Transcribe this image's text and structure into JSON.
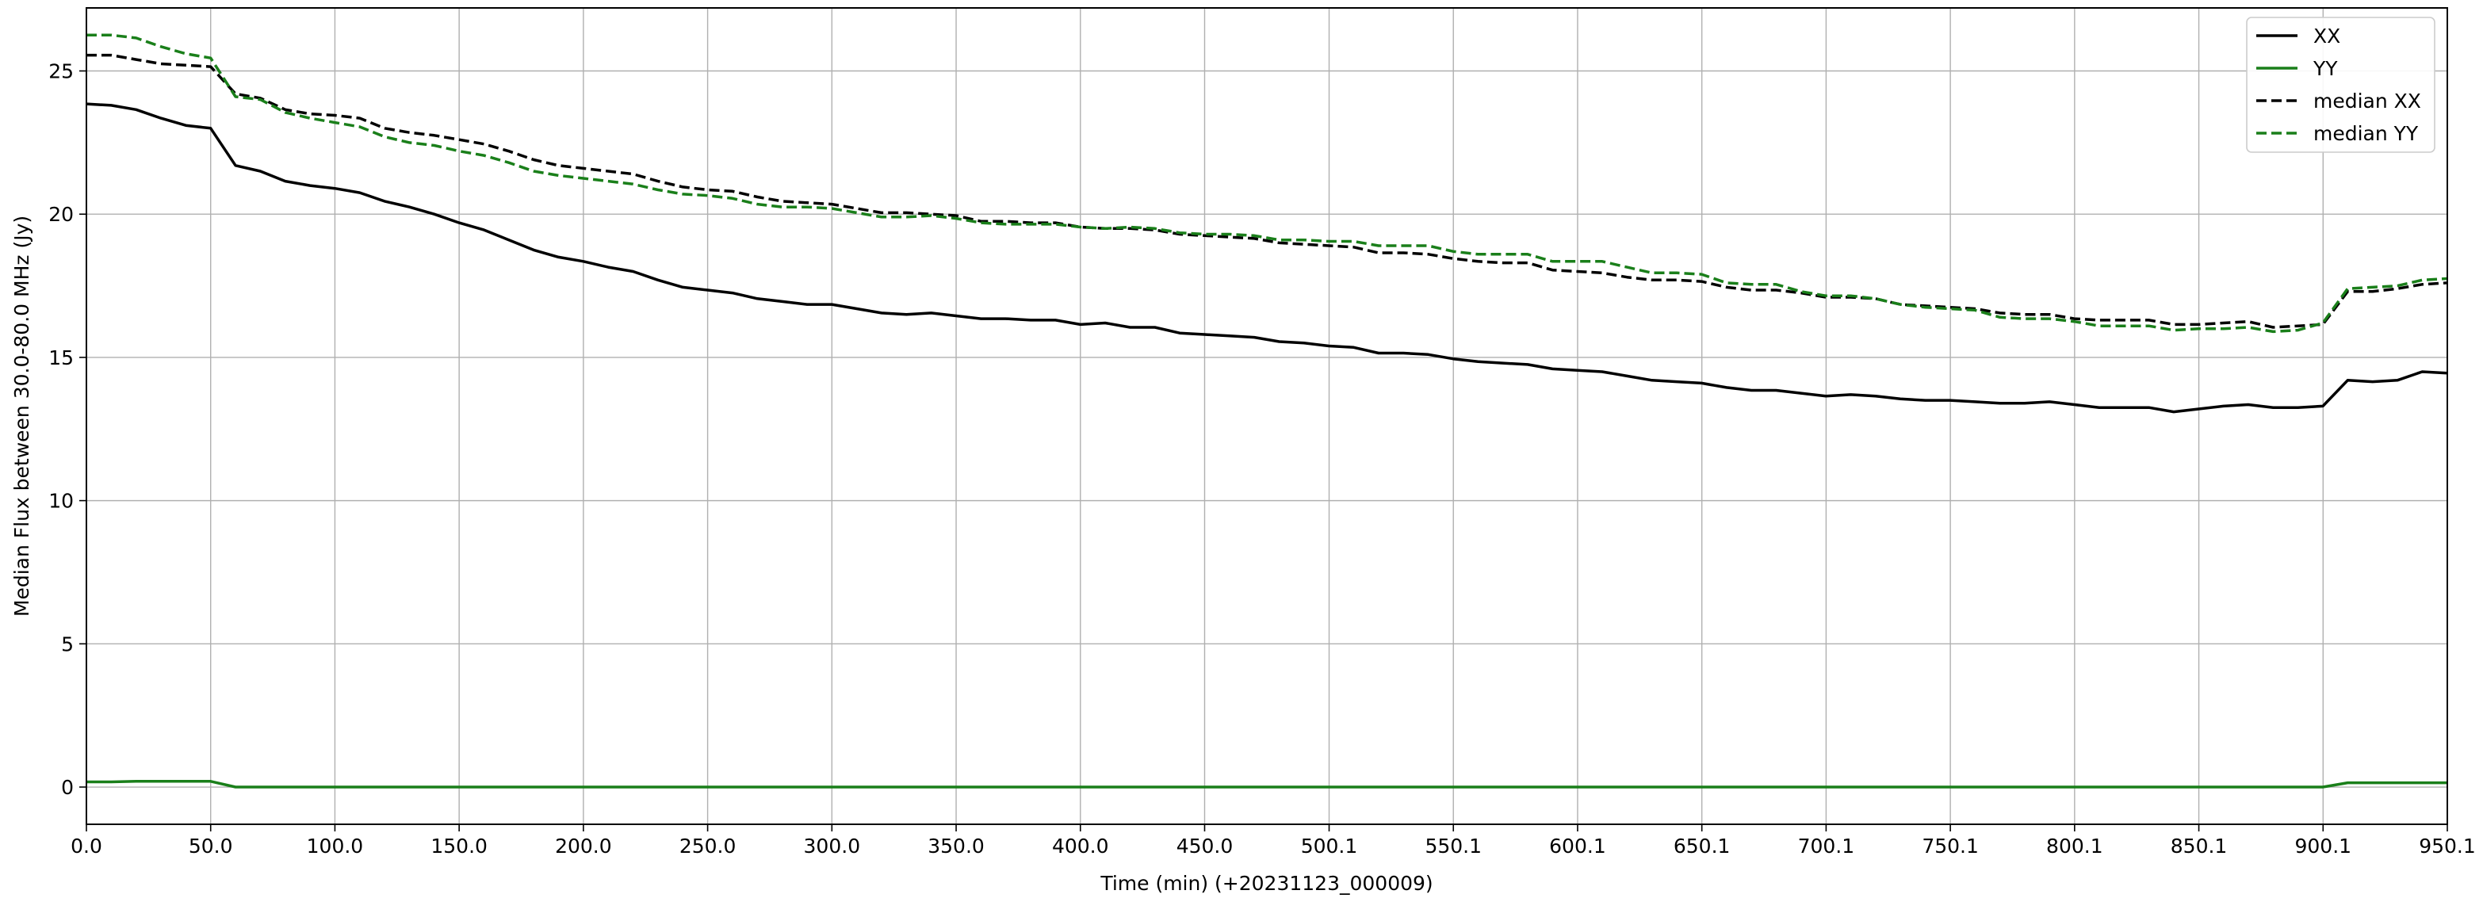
{
  "chart_data": {
    "type": "line",
    "xlabel": "Time (min) (+20231123_000009)",
    "ylabel": "Median Flux between 30.0-80.0 MHz  (Jy)",
    "xlim": [
      0,
      950.1
    ],
    "ylim": [
      -1.3,
      27.2
    ],
    "x_ticks": [
      0.0,
      50.0,
      100.0,
      150.0,
      200.0,
      250.0,
      300.0,
      350.0,
      400.0,
      450.0,
      500.1,
      550.1,
      600.1,
      650.1,
      700.1,
      750.1,
      800.1,
      850.1,
      900.1,
      950.1
    ],
    "x_tick_labels": [
      "0.0",
      "50.0",
      "100.0",
      "150.0",
      "200.0",
      "250.0",
      "300.0",
      "350.0",
      "400.0",
      "450.0",
      "500.1",
      "550.1",
      "600.1",
      "650.1",
      "700.1",
      "750.1",
      "800.1",
      "850.1",
      "900.1",
      "950.1"
    ],
    "y_ticks": [
      0,
      5,
      10,
      15,
      20,
      25
    ],
    "y_tick_labels": [
      "0",
      "5",
      "10",
      "15",
      "20",
      "25"
    ],
    "grid": true,
    "legend_position": "top-right",
    "colors": {
      "xx": "#000000",
      "yy": "#1a7f1a"
    },
    "x": [
      0,
      10,
      20,
      30,
      40,
      50,
      60,
      70,
      80,
      90,
      100,
      110,
      120,
      130,
      140,
      150,
      160,
      170,
      180,
      190,
      200,
      210,
      220,
      230,
      240,
      250,
      260,
      270,
      280,
      290,
      300,
      310,
      320,
      330,
      340,
      350,
      360,
      370,
      380,
      390,
      400,
      410,
      420,
      430,
      440,
      450,
      460,
      470,
      480,
      490,
      500,
      510,
      520,
      530,
      540,
      550,
      560,
      570,
      580,
      590,
      600,
      610,
      620,
      630,
      640,
      650,
      660,
      670,
      680,
      690,
      700,
      710,
      720,
      730,
      740,
      750,
      760,
      770,
      780,
      790,
      800,
      810,
      820,
      830,
      840,
      850,
      860,
      870,
      880,
      890,
      900,
      910,
      920,
      930,
      940,
      950
    ],
    "series": [
      {
        "name": "XX",
        "style": "solid",
        "color": "#000000",
        "values": [
          23.85,
          23.8,
          23.65,
          23.35,
          23.1,
          23.0,
          21.7,
          21.5,
          21.15,
          21.0,
          20.9,
          20.75,
          20.45,
          20.25,
          20.0,
          19.7,
          19.45,
          19.1,
          18.75,
          18.5,
          18.35,
          18.15,
          18.0,
          17.7,
          17.45,
          17.35,
          17.25,
          17.05,
          16.95,
          16.85,
          16.85,
          16.7,
          16.55,
          16.5,
          16.55,
          16.45,
          16.35,
          16.35,
          16.3,
          16.3,
          16.15,
          16.2,
          16.05,
          16.05,
          15.85,
          15.8,
          15.75,
          15.7,
          15.55,
          15.5,
          15.4,
          15.35,
          15.15,
          15.15,
          15.1,
          14.95,
          14.85,
          14.8,
          14.75,
          14.6,
          14.55,
          14.5,
          14.35,
          14.2,
          14.15,
          14.1,
          13.95,
          13.85,
          13.85,
          13.75,
          13.65,
          13.7,
          13.65,
          13.55,
          13.5,
          13.5,
          13.45,
          13.4,
          13.4,
          13.45,
          13.35,
          13.25,
          13.25,
          13.25,
          13.1,
          13.2,
          13.3,
          13.35,
          13.25,
          13.25,
          13.3,
          14.2,
          14.15,
          14.2,
          14.5,
          14.45
        ]
      },
      {
        "name": "YY",
        "style": "solid",
        "color": "#1a7f1a",
        "values": [
          0.18,
          0.18,
          0.2,
          0.2,
          0.2,
          0.2,
          0.0,
          0.0,
          0.0,
          0.0,
          0.0,
          0.0,
          0.0,
          0.0,
          0.0,
          0.0,
          0.0,
          0.0,
          0.0,
          0.0,
          0.0,
          0.0,
          0.0,
          0.0,
          0.0,
          0.0,
          0.0,
          0.0,
          0.0,
          0.0,
          0.0,
          0.0,
          0.0,
          0.0,
          0.0,
          0.0,
          0.0,
          0.0,
          0.0,
          0.0,
          0.0,
          0.0,
          0.0,
          0.0,
          0.0,
          0.0,
          0.0,
          0.0,
          0.0,
          0.0,
          0.0,
          0.0,
          0.0,
          0.0,
          0.0,
          0.0,
          0.0,
          0.0,
          0.0,
          0.0,
          0.0,
          0.0,
          0.0,
          0.0,
          0.0,
          0.0,
          0.0,
          0.0,
          0.0,
          0.0,
          0.0,
          0.0,
          0.0,
          0.0,
          0.0,
          0.0,
          0.0,
          0.0,
          0.0,
          0.0,
          0.0,
          0.0,
          0.0,
          0.0,
          0.0,
          0.0,
          0.0,
          0.0,
          0.0,
          0.0,
          0.0,
          0.15,
          0.15,
          0.15,
          0.15,
          0.15
        ]
      },
      {
        "name": "median XX",
        "style": "dashed",
        "color": "#000000",
        "values": [
          25.55,
          25.55,
          25.4,
          25.25,
          25.2,
          25.15,
          24.2,
          24.05,
          23.65,
          23.5,
          23.45,
          23.35,
          23.0,
          22.85,
          22.75,
          22.6,
          22.45,
          22.2,
          21.9,
          21.7,
          21.6,
          21.5,
          21.4,
          21.15,
          20.95,
          20.85,
          20.8,
          20.6,
          20.45,
          20.4,
          20.35,
          20.2,
          20.05,
          20.05,
          20.0,
          19.95,
          19.75,
          19.75,
          19.7,
          19.7,
          19.55,
          19.5,
          19.5,
          19.45,
          19.3,
          19.25,
          19.2,
          19.15,
          19.0,
          18.95,
          18.9,
          18.85,
          18.65,
          18.65,
          18.6,
          18.45,
          18.35,
          18.3,
          18.3,
          18.05,
          18.0,
          17.95,
          17.8,
          17.7,
          17.7,
          17.65,
          17.45,
          17.35,
          17.35,
          17.25,
          17.1,
          17.1,
          17.05,
          16.85,
          16.8,
          16.75,
          16.7,
          16.55,
          16.5,
          16.5,
          16.35,
          16.3,
          16.3,
          16.3,
          16.15,
          16.15,
          16.2,
          16.25,
          16.05,
          16.1,
          16.15,
          17.3,
          17.3,
          17.4,
          17.55,
          17.6
        ]
      },
      {
        "name": "median YY",
        "style": "dashed",
        "color": "#1a7f1a",
        "values": [
          26.25,
          26.25,
          26.15,
          25.85,
          25.6,
          25.45,
          24.1,
          24.0,
          23.55,
          23.35,
          23.2,
          23.05,
          22.7,
          22.5,
          22.4,
          22.2,
          22.05,
          21.8,
          21.5,
          21.35,
          21.25,
          21.15,
          21.05,
          20.85,
          20.7,
          20.65,
          20.55,
          20.35,
          20.25,
          20.25,
          20.2,
          20.05,
          19.9,
          19.9,
          19.95,
          19.85,
          19.7,
          19.65,
          19.65,
          19.65,
          19.55,
          19.5,
          19.55,
          19.5,
          19.35,
          19.3,
          19.3,
          19.25,
          19.1,
          19.1,
          19.05,
          19.05,
          18.9,
          18.9,
          18.9,
          18.7,
          18.6,
          18.6,
          18.6,
          18.35,
          18.35,
          18.35,
          18.15,
          17.95,
          17.95,
          17.9,
          17.6,
          17.55,
          17.55,
          17.3,
          17.15,
          17.15,
          17.05,
          16.85,
          16.75,
          16.7,
          16.65,
          16.4,
          16.35,
          16.35,
          16.25,
          16.1,
          16.1,
          16.1,
          15.95,
          16.0,
          16.0,
          16.05,
          15.9,
          15.95,
          16.2,
          17.4,
          17.45,
          17.5,
          17.7,
          17.75
        ]
      }
    ]
  }
}
